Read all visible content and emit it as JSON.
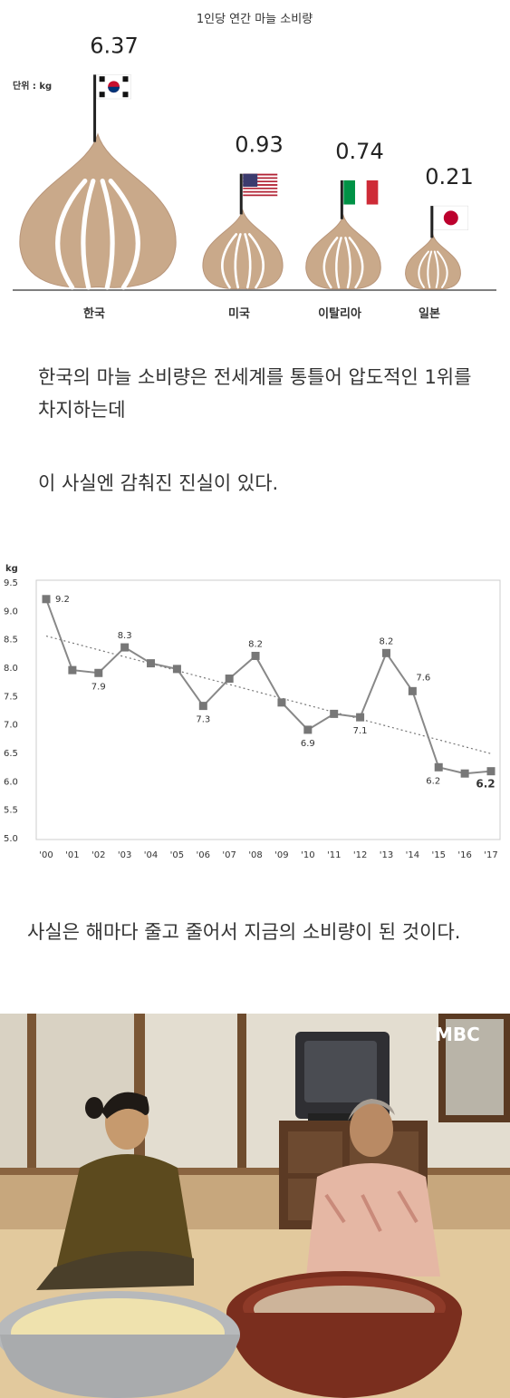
{
  "chart_data": [
    {
      "type": "bar",
      "title": "1인당 연간 마늘 소비량",
      "unit_label": "단위 : kg",
      "categories": [
        "한국",
        "미국",
        "이탈리아",
        "일본"
      ],
      "values": [
        6.37,
        0.93,
        0.74,
        0.21
      ],
      "value_labels": [
        "6.37",
        "0.93",
        "0.74",
        "0.21"
      ],
      "bar_style": "garlic-bulb-icons-with-flags",
      "flags": [
        "korea-flag-icon",
        "usa-flag-icon",
        "italy-flag-icon",
        "japan-flag-icon"
      ],
      "colors": {
        "garlic": "#c9a98a",
        "garlic_stroke": "#b8957a",
        "baseline": "#555555"
      }
    },
    {
      "type": "line",
      "ylabel": "kg",
      "x": [
        "'00",
        "'01",
        "'02",
        "'03",
        "'04",
        "'05",
        "'06",
        "'07",
        "'08",
        "'09",
        "'10",
        "'11",
        "'12",
        "'13",
        "'14",
        "'15",
        "'16",
        "'17"
      ],
      "series": [
        {
          "values": [
            9.2,
            7.95,
            7.9,
            8.35,
            8.07,
            7.97,
            7.32,
            7.8,
            8.2,
            7.38,
            6.9,
            7.18,
            7.12,
            8.25,
            7.58,
            6.24,
            6.13,
            6.17
          ]
        }
      ],
      "data_labels": [
        {
          "index": 0,
          "text": "9.2"
        },
        {
          "index": 2,
          "text": "7.9"
        },
        {
          "index": 3,
          "text": "8.3"
        },
        {
          "index": 6,
          "text": "7.3"
        },
        {
          "index": 8,
          "text": "8.2"
        },
        {
          "index": 10,
          "text": "6.9"
        },
        {
          "index": 12,
          "text": "7.1"
        },
        {
          "index": 13,
          "text": "8.2"
        },
        {
          "index": 14,
          "text": "7.6"
        },
        {
          "index": 15,
          "text": "6.2"
        },
        {
          "index": 17,
          "text": "6.2"
        }
      ],
      "yticks": [
        "9.5",
        "9.0",
        "8.5",
        "8.0",
        "7.5",
        "7.0",
        "6.5",
        "6.0",
        "5.5",
        "5.0"
      ],
      "ylim": [
        5.0,
        9.5
      ],
      "trendline": {
        "style": "dotted",
        "start": 8.55,
        "end": 6.48
      },
      "grid": false,
      "colors": {
        "line": "#888888",
        "marker": "#777777",
        "trend": "#777777",
        "frame": "#cccccc"
      }
    }
  ],
  "texts": {
    "para1": "한국의 마늘 소비량은 전세계를 통틀어 압도적인 1위를 차지하는데",
    "para2": "이 사실엔 감춰진 진실이 있다.",
    "para3": "사실은 해마다 줄고 줄어서 지금의 소비량이 된 것이다."
  },
  "photo": {
    "watermark": "MBC",
    "objects": [
      "woman-left-icon",
      "elderly-woman-right-icon",
      "silver-bowl-peeled-garlic",
      "brown-basin-garlic",
      "television-icon",
      "wooden-cabinet-icon",
      "mirror-icon"
    ]
  }
}
